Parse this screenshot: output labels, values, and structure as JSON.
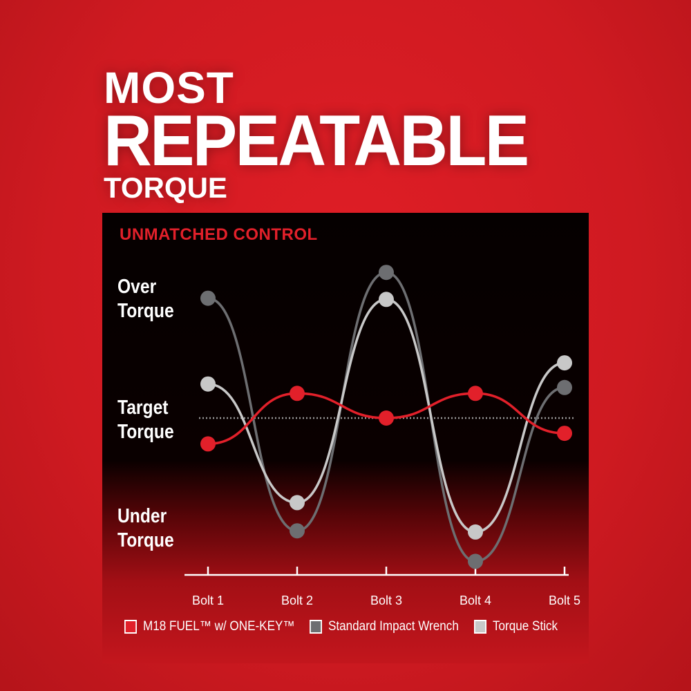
{
  "headline": {
    "line1": "MOST",
    "line2": "REPEATABLE",
    "line3": "TORQUE"
  },
  "chart_data": {
    "type": "line",
    "title": "UNMATCHED CONTROL",
    "categories": [
      "Bolt 1",
      "Bolt 2",
      "Bolt 3",
      "Bolt 4",
      "Bolt 5"
    ],
    "y_labels": [
      {
        "text": "Over Torque",
        "value": 1
      },
      {
        "text": "Target Torque",
        "value": 0
      },
      {
        "text": "Under Torque",
        "value": -1
      }
    ],
    "target_line": 0,
    "ylim": [
      -1.5,
      1.5
    ],
    "series": [
      {
        "name": "Standard Impact Wrench",
        "color": "#6d6e71",
        "values": [
          1.02,
          -0.96,
          1.24,
          -1.22,
          0.26
        ]
      },
      {
        "name": "Torque Stick",
        "color": "#c8c8c8",
        "values": [
          0.29,
          -0.72,
          1.01,
          -0.97,
          0.47
        ]
      },
      {
        "name": "M18 FUEL™ w/ ONE-KEY™",
        "color": "#e2202a",
        "values": [
          -0.22,
          0.21,
          0.0,
          0.21,
          -0.13
        ]
      }
    ],
    "legend_position": "bottom"
  }
}
